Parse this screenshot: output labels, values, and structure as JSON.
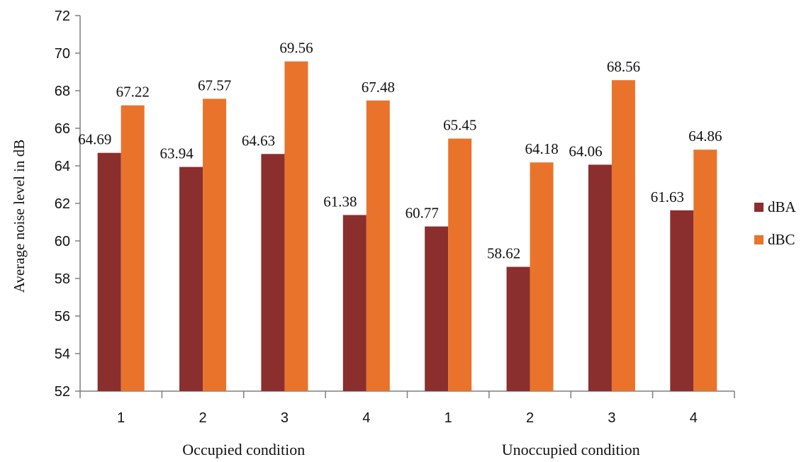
{
  "chart_data": {
    "type": "bar",
    "ylabel": "Average noise level in dB",
    "ylim": [
      52,
      72
    ],
    "yticks": [
      52,
      54,
      56,
      58,
      60,
      62,
      64,
      66,
      68,
      70,
      72
    ],
    "categories": [
      "1",
      "2",
      "3",
      "4",
      "1",
      "2",
      "3",
      "4"
    ],
    "groups": [
      "Occupied condition",
      "Unoccupied condition"
    ],
    "series": [
      {
        "name": "dBA",
        "color": "#8B2E2E",
        "values": [
          64.69,
          63.94,
          64.63,
          61.38,
          60.77,
          58.62,
          64.06,
          61.63
        ]
      },
      {
        "name": "dBC",
        "color": "#E9732A",
        "values": [
          67.22,
          67.57,
          69.56,
          67.48,
          65.45,
          64.18,
          68.56,
          64.86
        ]
      }
    ],
    "legend": "right",
    "grid": false
  }
}
